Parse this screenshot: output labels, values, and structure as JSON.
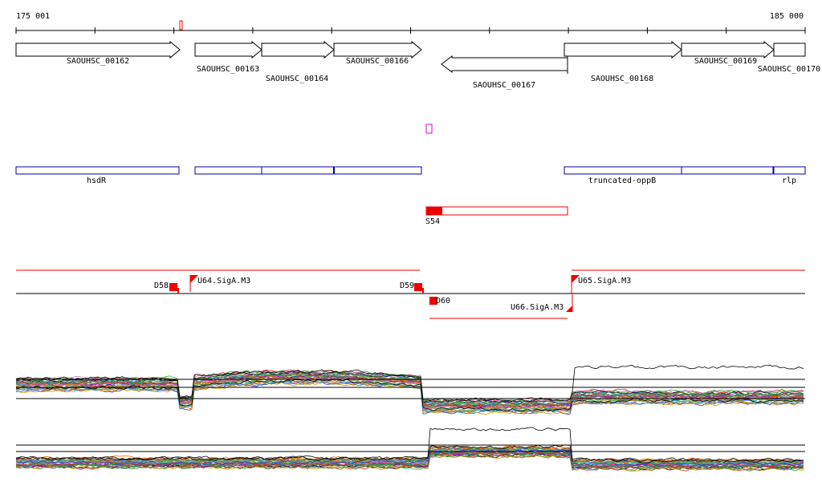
{
  "ruler": {
    "start": "175 001",
    "end": "185 000"
  },
  "genes": [
    "SAOUHSC_00162",
    "SAOUHSC_00163",
    "SAOUHSC_00164",
    "SAOUHSC_00166",
    "SAOUHSC_00167",
    "SAOUHSC_00168",
    "SAOUHSC_00169",
    "SAOUHSC_00170"
  ],
  "features": [
    "hsdR",
    "truncated-oppB",
    "rlp"
  ],
  "segments": [
    "S54"
  ],
  "regions": [
    "D58",
    "U64.SigA.M3",
    "D59",
    "D60",
    "U66.SigA.M3",
    "U65.SigA.M3"
  ]
}
